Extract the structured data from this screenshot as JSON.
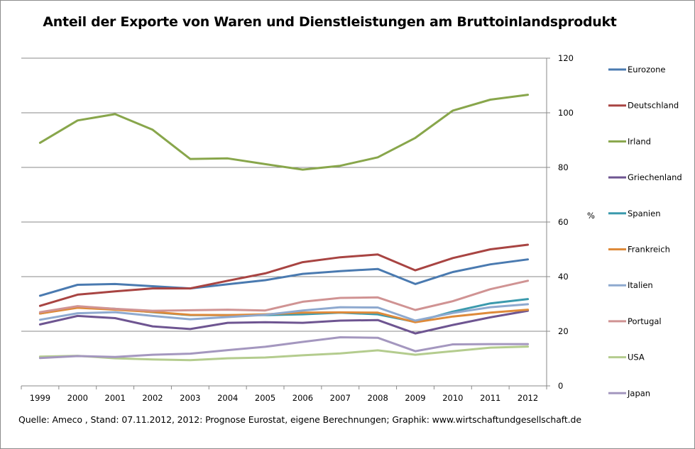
{
  "chart_data": {
    "type": "line",
    "title": "Anteil der Exporte von Waren und Dienstleistungen am Bruttoinlandsprodukt",
    "xlabel": "",
    "ylabel": "%",
    "ylim": [
      0,
      120
    ],
    "yticks": [
      0,
      20,
      40,
      60,
      80,
      100,
      120
    ],
    "y_axis_side": "right",
    "grid": true,
    "legend_position": "right",
    "categories": [
      "1999",
      "2000",
      "2001",
      "2002",
      "2003",
      "2004",
      "2005",
      "2006",
      "2007",
      "2008",
      "2009",
      "2010",
      "2011",
      "2012"
    ],
    "series": [
      {
        "name": "Eurozone",
        "color": "#4a7ab0",
        "values": [
          33.0,
          37.0,
          37.3,
          36.5,
          35.7,
          37.2,
          38.7,
          41.0,
          42.0,
          42.8,
          37.3,
          41.7,
          44.5,
          46.3
        ]
      },
      {
        "name": "Deutschland",
        "color": "#a84442",
        "values": [
          29.3,
          33.4,
          34.6,
          35.7,
          35.7,
          38.5,
          41.2,
          45.3,
          47.1,
          48.1,
          42.3,
          46.8,
          50.0,
          51.7
        ]
      },
      {
        "name": "Irland",
        "color": "#88a64b",
        "values": [
          89.0,
          97.2,
          99.5,
          93.8,
          83.1,
          83.3,
          81.2,
          79.2,
          80.6,
          83.7,
          90.8,
          100.8,
          104.8,
          106.6
        ]
      },
      {
        "name": "Griechenland",
        "color": "#6e5591",
        "values": [
          22.5,
          25.6,
          24.8,
          21.8,
          20.8,
          23.1,
          23.3,
          23.1,
          23.9,
          24.1,
          19.2,
          22.3,
          25.1,
          27.5
        ]
      },
      {
        "name": "Spanien",
        "color": "#3b9aad",
        "values": [
          26.5,
          28.9,
          28.2,
          27.0,
          25.9,
          25.9,
          25.9,
          26.2,
          26.8,
          26.2,
          23.4,
          27.2,
          30.2,
          31.8
        ]
      },
      {
        "name": "Frankreich",
        "color": "#de8a3a",
        "values": [
          26.5,
          28.6,
          27.9,
          27.1,
          26.0,
          25.9,
          26.2,
          26.8,
          26.9,
          26.8,
          23.3,
          25.4,
          26.8,
          27.9
        ]
      },
      {
        "name": "Italien",
        "color": "#8ea9cf",
        "values": [
          24.2,
          26.6,
          27.0,
          25.6,
          24.4,
          25.2,
          26.0,
          27.6,
          28.8,
          28.7,
          23.9,
          26.7,
          28.8,
          29.9
        ]
      },
      {
        "name": "Portugal",
        "color": "#d09393",
        "values": [
          27.0,
          29.2,
          28.2,
          27.5,
          27.7,
          27.9,
          27.6,
          30.8,
          32.2,
          32.4,
          27.8,
          31.0,
          35.4,
          38.5
        ]
      },
      {
        "name": "USA",
        "color": "#b4cc8e",
        "values": [
          10.7,
          11.0,
          10.1,
          9.7,
          9.4,
          10.1,
          10.4,
          11.2,
          11.9,
          13.0,
          11.4,
          12.7,
          14.0,
          14.4
        ]
      },
      {
        "name": "Japan",
        "color": "#a497bf",
        "values": [
          10.2,
          10.9,
          10.6,
          11.4,
          11.8,
          13.1,
          14.3,
          16.1,
          17.8,
          17.6,
          12.7,
          15.2,
          15.3,
          15.3
        ]
      }
    ],
    "source_note": "Quelle: Ameco , Stand: 07.11.2012,  2012:  Prognose Eurostat, eigene Berechnungen; Graphik: www.wirtschaftundgesellschaft.de"
  }
}
